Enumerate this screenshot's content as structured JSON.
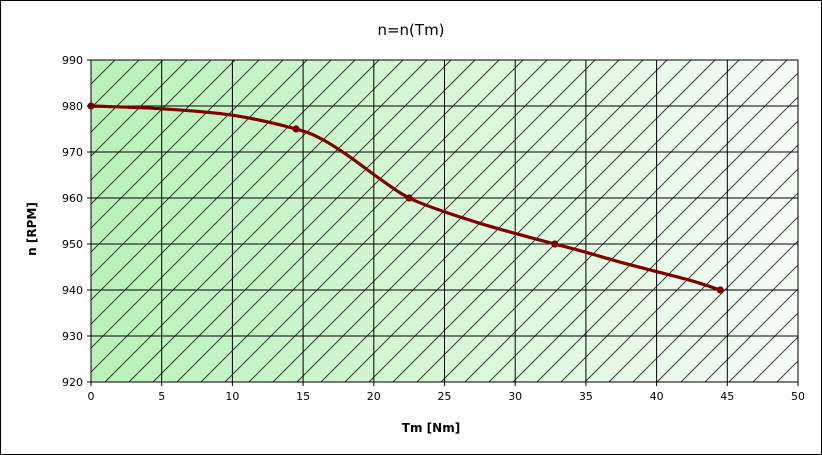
{
  "colors": {
    "plot_gradient_left": "#b9f2b9",
    "plot_gradient_right": "#f4fcf4",
    "hatch": "#000000",
    "grid": "#000000",
    "series": "#800000"
  },
  "chart_data": {
    "type": "line",
    "title": "n=n(Tm)",
    "xlabel": "Tm [Nm]",
    "ylabel": "n [RPM]",
    "xlim": [
      0,
      50
    ],
    "ylim": [
      920,
      990
    ],
    "xticks": [
      "0",
      "5",
      "10",
      "15",
      "20",
      "25",
      "30",
      "35",
      "40",
      "45",
      "50"
    ],
    "yticks": [
      "920",
      "930",
      "940",
      "950",
      "960",
      "970",
      "980",
      "990"
    ],
    "grid": true,
    "legend": "none",
    "series": [
      {
        "markers": [
          [
            0,
            980
          ],
          [
            14.5,
            975
          ],
          [
            22.5,
            960
          ],
          [
            32.8,
            950
          ],
          [
            44.5,
            940
          ]
        ],
        "curve": [
          [
            0,
            980
          ],
          [
            5,
            979.4
          ],
          [
            10,
            978
          ],
          [
            14.5,
            975
          ],
          [
            16.5,
            972.5
          ],
          [
            18.5,
            968.5
          ],
          [
            20.5,
            964
          ],
          [
            22.5,
            960
          ],
          [
            25,
            957
          ],
          [
            27.5,
            954.5
          ],
          [
            30,
            952.3
          ],
          [
            32.8,
            950
          ],
          [
            35,
            948.2
          ],
          [
            37.5,
            946
          ],
          [
            40,
            944
          ],
          [
            42.5,
            942
          ],
          [
            44.5,
            940
          ]
        ]
      }
    ]
  }
}
